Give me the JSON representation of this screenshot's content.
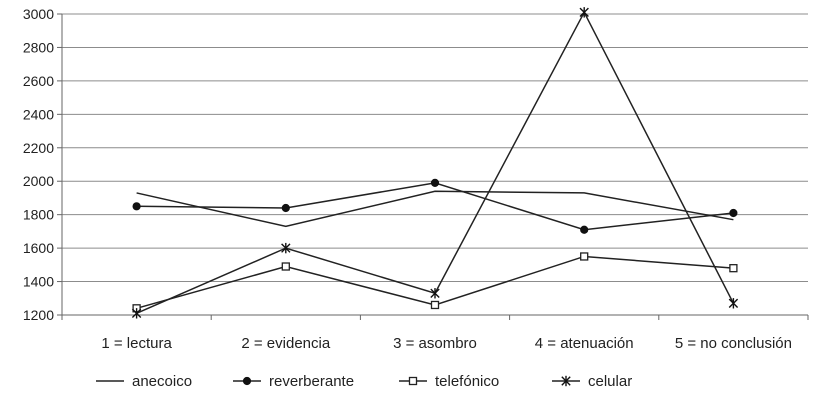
{
  "chart_data": {
    "type": "line",
    "categories": [
      "1 = lectura",
      "2 = evidencia",
      "3 = asombro",
      "4 = atenuación",
      "5 = no conclusión"
    ],
    "ylim": [
      1200,
      3000
    ],
    "yticks": [
      1200,
      1400,
      1600,
      1800,
      2000,
      2200,
      2400,
      2600,
      2800,
      3000
    ],
    "grid": "horizontal",
    "legend_position": "bottom",
    "series": [
      {
        "name": "anecoico",
        "marker": "none",
        "values": [
          1930,
          1730,
          1940,
          1930,
          1770
        ]
      },
      {
        "name": "reverberante",
        "marker": "filled-circle",
        "values": [
          1850,
          1840,
          1990,
          1710,
          1810
        ]
      },
      {
        "name": "telefónico",
        "marker": "open-square",
        "values": [
          1240,
          1490,
          1260,
          1550,
          1480
        ]
      },
      {
        "name": "celular",
        "marker": "star",
        "values": [
          1210,
          1600,
          1330,
          3010,
          1270
        ]
      }
    ]
  }
}
